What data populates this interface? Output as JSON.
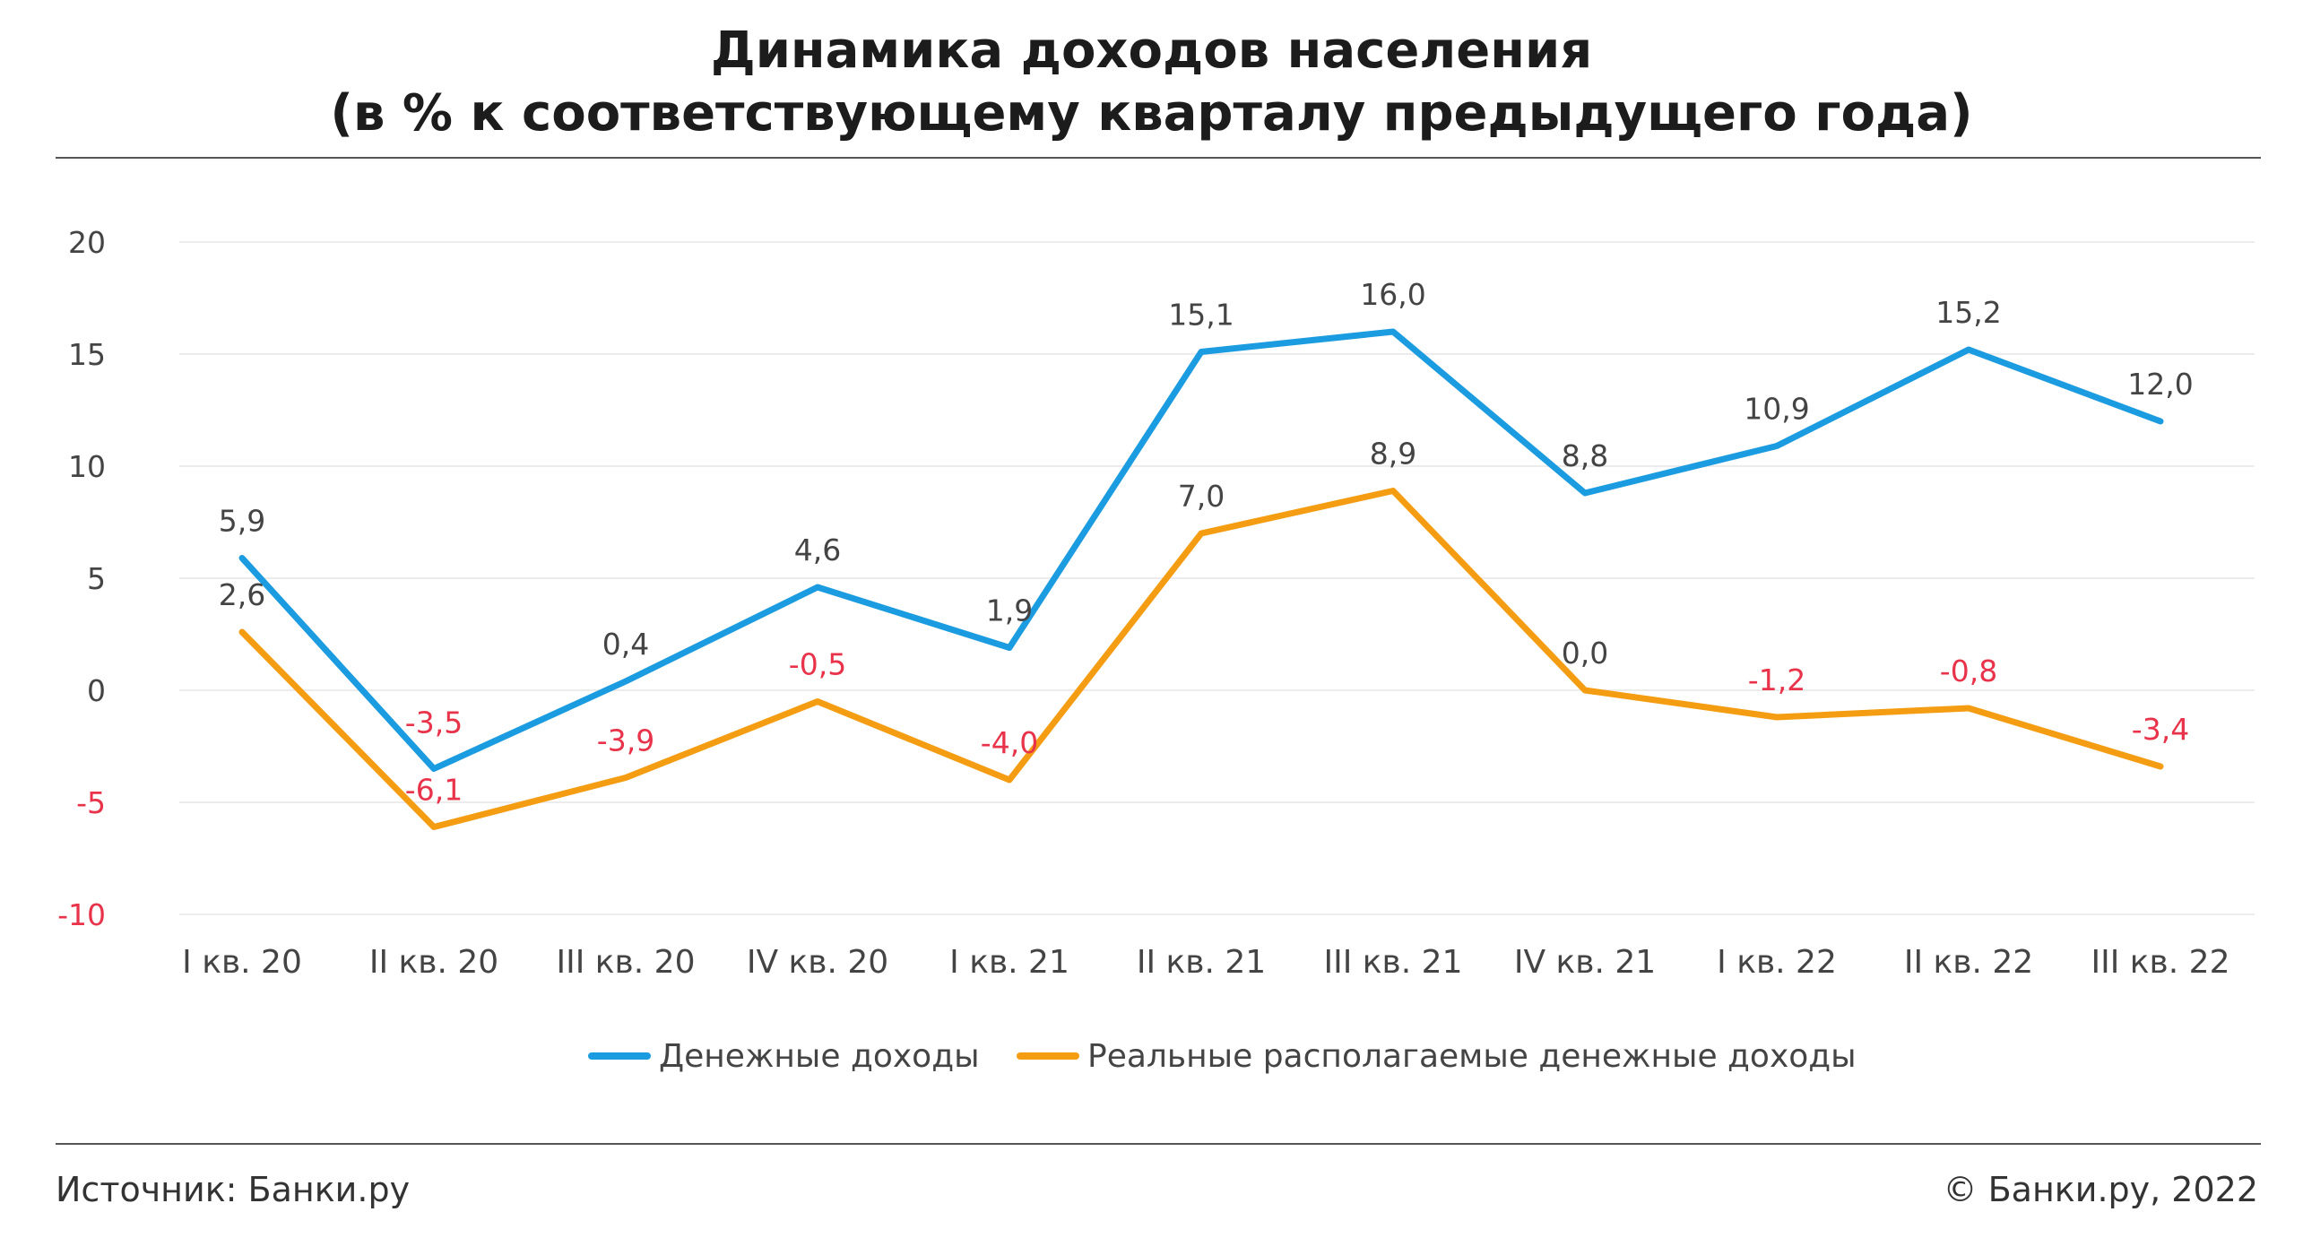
{
  "header": {
    "title_line1": "Динамика доходов населения",
    "title_line2": "(в % к соответствующему кварталу предыдущего года)"
  },
  "footer": {
    "source": "Источник: Банки.ру",
    "copyright": "© Банки.ру, 2022"
  },
  "colors": {
    "money_income": "#1b9be0",
    "real_income": "#f59d12",
    "negative_label": "#e8334a",
    "grid": "#ececec"
  },
  "chart_data": {
    "type": "line",
    "title": "Динамика доходов населения (в % к соответствующему кварталу предыдущего года)",
    "xlabel": "",
    "ylabel": "",
    "ylim": [
      -10,
      20
    ],
    "yticks": [
      20,
      15,
      10,
      5,
      0,
      -5,
      -10
    ],
    "categories": [
      "I кв. 20",
      "II кв. 20",
      "III кв. 20",
      "IV кв. 20",
      "I кв. 21",
      "II кв. 21",
      "III кв. 21",
      "IV кв. 21",
      "I кв. 22",
      "II кв. 22",
      "III кв. 22"
    ],
    "series": [
      {
        "name": "Денежные доходы",
        "values": [
          5.9,
          -3.5,
          0.4,
          4.6,
          1.9,
          15.1,
          16.0,
          8.8,
          10.9,
          15.2,
          12.0
        ],
        "labels": [
          "5,9",
          "-3,5",
          "0,4",
          "4,6",
          "1,9",
          "15,1",
          "16,0",
          "8,8",
          "10,9",
          "15,2",
          "12,0"
        ]
      },
      {
        "name": "Реальные располагаемые денежные доходы",
        "values": [
          2.6,
          -6.1,
          -3.9,
          -0.5,
          -4.0,
          7.0,
          8.9,
          0.0,
          -1.2,
          -0.8,
          -3.4
        ],
        "labels": [
          "2,6",
          "-6,1",
          "-3,9",
          "-0,5",
          "-4,0",
          "7,0",
          "8,9",
          "0,0",
          "-1,2",
          "-0,8",
          "-3,4"
        ]
      }
    ],
    "legend": "bottom"
  }
}
